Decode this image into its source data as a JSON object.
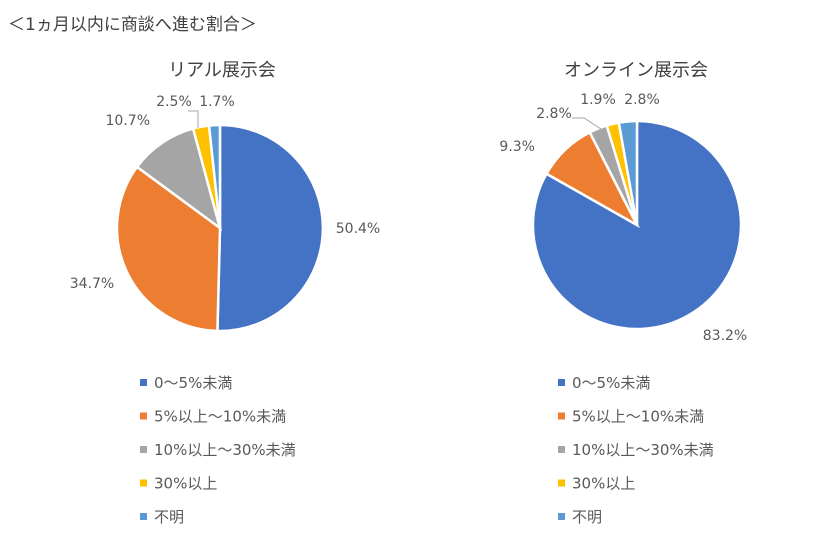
{
  "page_title": "＜1ヵ月以内に商談へ進む割合＞",
  "colors": {
    "blue": "#4472C4",
    "orange": "#ED7D31",
    "gray": "#A5A5A5",
    "yellow": "#FFC000",
    "lightblue": "#5B9BD5"
  },
  "chart_data": [
    {
      "type": "pie",
      "title": "リアル展示会",
      "categories": [
        "0～5%未満",
        "5%以上～10%未満",
        "10%以上～30%未満",
        "30%以上",
        "不明"
      ],
      "values": [
        50.4,
        34.7,
        10.7,
        2.5,
        1.7
      ],
      "labels": [
        "50.4%",
        "34.7%",
        "10.7%",
        "2.5%",
        "1.7%"
      ],
      "legend": "bottom"
    },
    {
      "type": "pie",
      "title": "オンライン展示会",
      "categories": [
        "0～5%未満",
        "5%以上～10%未満",
        "10%以上～30%未満",
        "30%以上",
        "不明"
      ],
      "values": [
        83.2,
        9.3,
        2.8,
        1.9,
        2.8
      ],
      "labels": [
        "83.2%",
        "9.3%",
        "2.8%",
        "1.9%",
        "2.8%"
      ],
      "legend": "bottom"
    }
  ]
}
